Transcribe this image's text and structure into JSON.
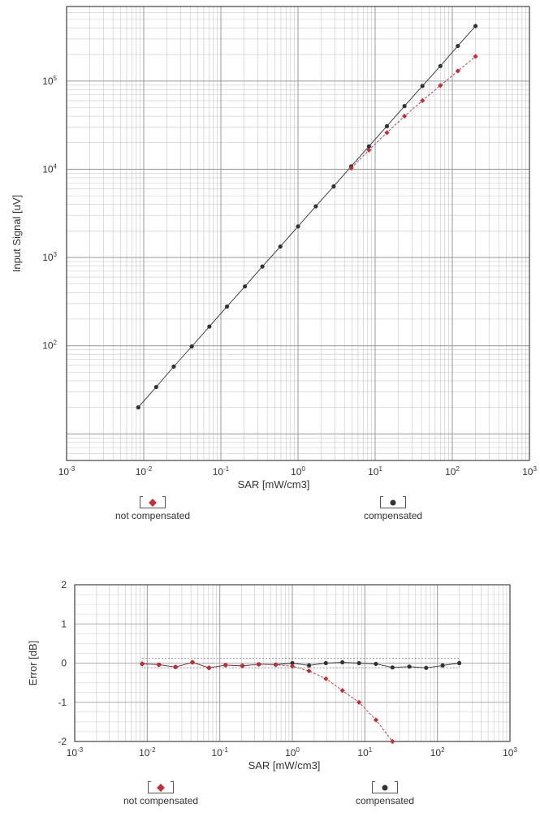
{
  "colors": {
    "compensated": "#333333",
    "not_compensated": "#c0303a",
    "grid": "#9a9a9a"
  },
  "chart_data": [
    {
      "type": "scatter",
      "id": "signal",
      "xlabel": "SAR [mW/cm3]",
      "ylabel": "Input Signal [uV]",
      "x_scale": "log",
      "y_scale": "log",
      "xlim": [
        0.001,
        1000
      ],
      "ylim": [
        5,
        700000
      ],
      "x_ticks": [
        {
          "value": 0.001,
          "base": "10",
          "exp": "-3"
        },
        {
          "value": 0.01,
          "base": "10",
          "exp": "-2"
        },
        {
          "value": 0.1,
          "base": "10",
          "exp": "-1"
        },
        {
          "value": 1,
          "base": "10",
          "exp": "0"
        },
        {
          "value": 10,
          "base": "10",
          "exp": "1"
        },
        {
          "value": 100,
          "base": "10",
          "exp": "2"
        },
        {
          "value": 1000,
          "base": "10",
          "exp": "3"
        }
      ],
      "y_ticks": [
        {
          "value": 100,
          "base": "10",
          "exp": "2"
        },
        {
          "value": 1000,
          "base": "10",
          "exp": "3"
        },
        {
          "value": 10000,
          "base": "10",
          "exp": "4"
        },
        {
          "value": 100000,
          "base": "10",
          "exp": "5"
        }
      ],
      "grid": true,
      "series": [
        {
          "key": "compensated",
          "name": "compensated",
          "marker": "circle",
          "x": [
            0.0085,
            0.0145,
            0.0245,
            0.042,
            0.071,
            0.12,
            0.205,
            0.345,
            0.59,
            1.0,
            1.7,
            2.9,
            4.9,
            8.3,
            14.2,
            24,
            41,
            70,
            118,
            200
          ],
          "y": [
            20,
            34,
            58,
            98,
            165,
            278,
            470,
            790,
            1330,
            2250,
            3800,
            6400,
            10800,
            18200,
            30800,
            52000,
            88000,
            148000,
            250000,
            420000
          ]
        },
        {
          "key": "not_compensated",
          "name": "not compensated",
          "marker": "diamond",
          "x": [
            4.9,
            8.3,
            14.2,
            24,
            41,
            70,
            118,
            200
          ],
          "y": [
            10300,
            16500,
            26000,
            40000,
            60000,
            89000,
            130000,
            190000
          ]
        }
      ]
    },
    {
      "type": "scatter",
      "id": "error",
      "xlabel": "SAR [mW/cm3]",
      "ylabel": "Error [dB]",
      "x_scale": "log",
      "y_scale": "linear",
      "xlim": [
        0.001,
        1000
      ],
      "ylim": [
        -2,
        2
      ],
      "x_ticks": [
        {
          "value": 0.001,
          "base": "10",
          "exp": "-3"
        },
        {
          "value": 0.01,
          "base": "10",
          "exp": "-2"
        },
        {
          "value": 0.1,
          "base": "10",
          "exp": "-1"
        },
        {
          "value": 1,
          "base": "10",
          "exp": "0"
        },
        {
          "value": 10,
          "base": "10",
          "exp": "1"
        },
        {
          "value": 100,
          "base": "10",
          "exp": "2"
        },
        {
          "value": 1000,
          "base": "10",
          "exp": "3"
        }
      ],
      "y_ticks": [
        "2",
        "1",
        "0",
        "-1",
        "-2"
      ],
      "grid": true,
      "series": [
        {
          "key": "compensated",
          "name": "compensated",
          "marker": "circle",
          "x": [
            0.0085,
            0.0145,
            0.0245,
            0.042,
            0.071,
            0.12,
            0.205,
            0.345,
            0.59,
            1.0,
            1.7,
            2.9,
            4.9,
            8.3,
            14.2,
            24,
            41,
            70,
            118,
            200
          ],
          "y": [
            -0.02,
            -0.04,
            -0.1,
            0.02,
            -0.12,
            -0.05,
            -0.07,
            -0.03,
            -0.04,
            0.0,
            -0.06,
            0.0,
            0.02,
            0.0,
            -0.02,
            -0.11,
            -0.09,
            -0.12,
            -0.06,
            0.0
          ]
        },
        {
          "key": "not_compensated",
          "name": "not compensated",
          "marker": "diamond",
          "x": [
            0.0085,
            0.0145,
            0.0245,
            0.042,
            0.071,
            0.12,
            0.205,
            0.345,
            0.59,
            1.0,
            1.7,
            2.9,
            4.9,
            8.3,
            14.2,
            24
          ],
          "y": [
            -0.02,
            -0.04,
            -0.1,
            0.02,
            -0.12,
            -0.05,
            -0.07,
            -0.03,
            -0.04,
            -0.08,
            -0.2,
            -0.4,
            -0.7,
            -1.0,
            -1.45,
            -2.0
          ]
        }
      ]
    }
  ],
  "legends": [
    {
      "not_compensated": "not compensated",
      "compensated": "compensated"
    },
    {
      "not_compensated": "not compensated",
      "compensated": "compensated"
    }
  ]
}
